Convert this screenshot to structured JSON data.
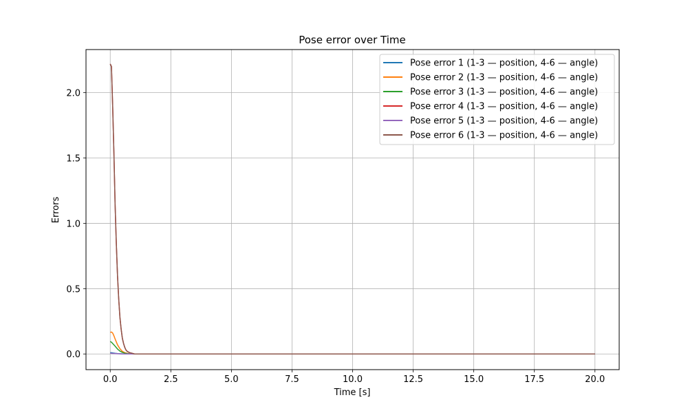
{
  "chart_data": {
    "type": "line",
    "title": "Pose error over Time",
    "xlabel": "Time [s]",
    "ylabel": "Errors",
    "xlim": [
      -1.0,
      21.0
    ],
    "ylim": [
      -0.12,
      2.33
    ],
    "xticks": [
      0.0,
      2.5,
      5.0,
      7.5,
      10.0,
      12.5,
      15.0,
      17.5,
      20.0
    ],
    "xtick_labels": [
      "0.0",
      "2.5",
      "5.0",
      "7.5",
      "10.0",
      "12.5",
      "15.0",
      "17.5",
      "20.0"
    ],
    "yticks": [
      0.0,
      0.5,
      1.0,
      1.5,
      2.0
    ],
    "ytick_labels": [
      "0.0",
      "0.5",
      "1.0",
      "1.5",
      "2.0"
    ],
    "grid": true,
    "legend_position": "top-right",
    "series": [
      {
        "name": "Pose error 1 (1-3 — position, 4-6 — angle)",
        "color": "#1f77b4",
        "x": [
          0.0,
          0.05,
          0.1,
          0.2,
          0.3,
          0.4,
          0.5,
          0.7,
          1.0,
          2.0,
          5.0,
          10.0,
          15.0,
          20.0
        ],
        "y": [
          0.01,
          0.01,
          0.008,
          0.005,
          0.003,
          0.002,
          0.001,
          0.0,
          0.0,
          0.0,
          0.0,
          0.0,
          0.0,
          0.0
        ]
      },
      {
        "name": "Pose error 2 (1-3 — position, 4-6 — angle)",
        "color": "#ff7f0e",
        "x": [
          0.0,
          0.05,
          0.1,
          0.15,
          0.2,
          0.3,
          0.4,
          0.5,
          0.6,
          0.7,
          0.8,
          1.0,
          1.5,
          2.0,
          5.0,
          10.0,
          15.0,
          20.0
        ],
        "y": [
          0.165,
          0.168,
          0.16,
          0.14,
          0.115,
          0.07,
          0.04,
          0.02,
          0.01,
          0.005,
          0.002,
          0.0,
          0.0,
          0.0,
          0.0,
          0.0,
          0.0,
          0.0
        ]
      },
      {
        "name": "Pose error 3 (1-3 — position, 4-6 — angle)",
        "color": "#2ca02c",
        "x": [
          0.0,
          0.05,
          0.1,
          0.2,
          0.3,
          0.4,
          0.5,
          0.6,
          0.7,
          0.8,
          1.0,
          1.5,
          2.0,
          5.0,
          10.0,
          15.0,
          20.0
        ],
        "y": [
          0.095,
          0.09,
          0.08,
          0.06,
          0.038,
          0.022,
          0.012,
          0.006,
          0.003,
          0.001,
          0.0,
          0.0,
          0.0,
          0.0,
          0.0,
          0.0,
          0.0
        ]
      },
      {
        "name": "Pose error 4 (1-3 — position, 4-6 — angle)",
        "color": "#d62728",
        "x": [
          0.0,
          0.05,
          0.1,
          0.15,
          0.2,
          0.25,
          0.3,
          0.35,
          0.4,
          0.45,
          0.5,
          0.55,
          0.6,
          0.65,
          0.7,
          0.8,
          0.9,
          1.0,
          1.5,
          2.0,
          5.0,
          10.0,
          15.0,
          20.0
        ],
        "y": [
          2.22,
          2.2,
          1.9,
          1.55,
          1.15,
          0.85,
          0.6,
          0.42,
          0.28,
          0.19,
          0.12,
          0.08,
          0.05,
          0.03,
          0.02,
          0.01,
          0.005,
          0.0,
          0.0,
          0.0,
          0.0,
          0.0,
          0.0,
          0.0
        ]
      },
      {
        "name": "Pose error 5 (1-3 — position, 4-6 — angle)",
        "color": "#9467bd",
        "x": [
          0.0,
          0.05,
          0.1,
          0.2,
          0.3,
          0.4,
          0.5,
          0.7,
          1.0,
          2.0,
          5.0,
          10.0,
          15.0,
          20.0
        ],
        "y": [
          0.005,
          0.005,
          0.004,
          0.003,
          0.002,
          0.001,
          0.0,
          0.0,
          0.0,
          0.0,
          0.0,
          0.0,
          0.0,
          0.0
        ]
      },
      {
        "name": "Pose error 6 (1-3 — position, 4-6 — angle)",
        "color": "#8c564b",
        "x": [
          0.0,
          0.05,
          0.1,
          0.15,
          0.2,
          0.25,
          0.3,
          0.35,
          0.4,
          0.45,
          0.5,
          0.55,
          0.6,
          0.65,
          0.7,
          0.8,
          0.9,
          1.0,
          1.5,
          2.0,
          5.0,
          10.0,
          15.0,
          20.0
        ],
        "y": [
          2.22,
          2.2,
          1.9,
          1.55,
          1.15,
          0.85,
          0.6,
          0.42,
          0.28,
          0.19,
          0.12,
          0.08,
          0.05,
          0.03,
          0.02,
          0.01,
          0.005,
          0.0,
          0.0,
          0.0,
          0.0,
          0.0,
          0.0,
          0.0
        ]
      }
    ]
  }
}
